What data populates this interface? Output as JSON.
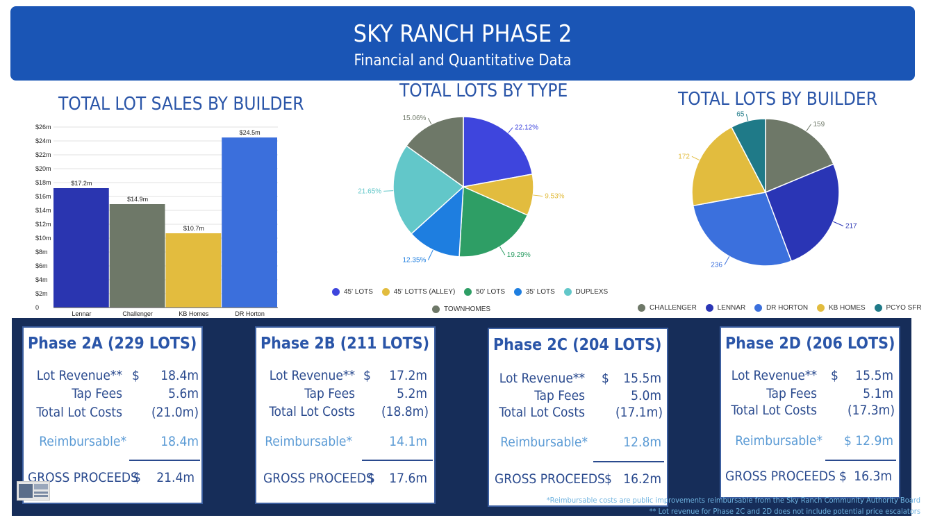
{
  "header": {
    "title": "SKY RANCH PHASE 2",
    "subtitle": "Financial and Quantitative Data"
  },
  "colors": {
    "banner": "#1a55b5",
    "title": "#2a55a8",
    "panel": "#162d59",
    "light_text": "#5b9bd5"
  },
  "chart_data": [
    {
      "type": "bar",
      "title": "TOTAL LOT SALES BY BUILDER",
      "categories": [
        "Lennar",
        "Challenger",
        "KB Homes",
        "DR Horton"
      ],
      "values": [
        17.2,
        14.9,
        10.7,
        24.5
      ],
      "value_labels": [
        "$17.2m",
        "$14.9m",
        "$10.7m",
        "$24.5m"
      ],
      "colors": [
        "#2a35b0",
        "#6e7868",
        "#e3bc3e",
        "#3b6fdc"
      ],
      "yticks": [
        "0",
        "$2m",
        "$4m",
        "$6m",
        "$8m",
        "$10m",
        "$12m",
        "$14m",
        "$16m",
        "$18m",
        "$20m",
        "$22m",
        "$24m",
        "$26m"
      ],
      "ylim": [
        0,
        26
      ],
      "grid": true
    },
    {
      "type": "pie",
      "title": "TOTAL LOTS BY TYPE",
      "labels": [
        "45' LOTS",
        "45' LOTTS (ALLEY)",
        "50' LOTS",
        "35' LOTS",
        "DUPLEXS",
        "TOWNHOMES"
      ],
      "values": [
        22.12,
        9.53,
        19.29,
        12.35,
        21.65,
        15.06
      ],
      "value_labels": [
        "22.12%",
        "9.53%",
        "19.29%",
        "12.35%",
        "21.65%",
        "15.06%"
      ],
      "colors": [
        "#3e45dd",
        "#e2bc3e",
        "#2e9e65",
        "#1e7ee0",
        "#62c7c9",
        "#6e7868"
      ],
      "legend_position": "bottom"
    },
    {
      "type": "pie",
      "title": "TOTAL LOTS BY BUILDER",
      "labels": [
        "CHALLENGER",
        "LENNAR",
        "DR HORTON",
        "KB HOMES",
        "PCYO SFR"
      ],
      "values": [
        159,
        217,
        236,
        172,
        65
      ],
      "value_labels": [
        "159",
        "217",
        "236",
        "172",
        "65"
      ],
      "colors": [
        "#6e7868",
        "#2a35b5",
        "#3b70dd",
        "#e2bc3e",
        "#1f7a88"
      ],
      "legend_position": "bottom"
    }
  ],
  "phases": [
    {
      "title": "Phase 2A (229 LOTS)",
      "lot_revenue_label": "Lot Revenue**",
      "currency": "$",
      "lot_revenue": "18.4m",
      "tap_fees_label": "Tap Fees",
      "tap_fees": "5.6m",
      "total_costs_label": "Total Lot Costs",
      "total_costs": "(21.0m)",
      "reimbursable_label": "Reimbursable*",
      "reimbursable": "18.4m",
      "gross_label": "GROSS PROCEEDS",
      "gross": "21.4m"
    },
    {
      "title": "Phase 2B (211 LOTS)",
      "lot_revenue_label": "Lot Revenue**",
      "currency": "$",
      "lot_revenue": "17.2m",
      "tap_fees_label": "Tap Fees",
      "tap_fees": "5.2m",
      "total_costs_label": "Total Lot Costs",
      "total_costs": "(18.8m)",
      "reimbursable_label": "Reimbursable*",
      "reimbursable": "14.1m",
      "gross_label": "GROSS PROCEEDS",
      "gross": "17.6m"
    },
    {
      "title": "Phase 2C (204 LOTS)",
      "lot_revenue_label": "Lot Revenue**",
      "currency": "$",
      "lot_revenue": "15.5m",
      "tap_fees_label": "Tap Fees",
      "tap_fees": "5.0m",
      "total_costs_label": "Total Lot Costs",
      "total_costs": "(17.1m)",
      "reimbursable_label": "Reimbursable*",
      "reimbursable": "12.8m",
      "gross_label": "GROSS PROCEEDS",
      "gross": "16.2m"
    },
    {
      "title": "Phase 2D (206 LOTS)",
      "lot_revenue_label": "Lot Revenue**",
      "currency": "$",
      "lot_revenue": "15.5m",
      "tap_fees_label": "Tap Fees",
      "tap_fees": "5.1m",
      "total_costs_label": "Total Lot Costs",
      "total_costs": "(17.3m)",
      "reimbursable_label": "Reimbursable*",
      "reimbursable": "$ 12.9m",
      "gross_label": "GROSS PROCEEDS",
      "gross": "16.3m"
    }
  ],
  "footnotes": {
    "reimbursable": "*Reimbursable costs are public improvements reimbursable from the Sky Ranch Community Authority Board",
    "lot_revenue": "** Lot revenue for Phase 2C and 2D does not include potential price escalators"
  }
}
